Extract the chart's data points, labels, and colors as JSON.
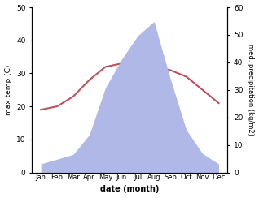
{
  "months": [
    "Jan",
    "Feb",
    "Mar",
    "Apr",
    "May",
    "Jun",
    "Jul",
    "Aug",
    "Sep",
    "Oct",
    "Nov",
    "Dec"
  ],
  "max_temp": [
    19,
    20,
    23,
    28,
    32,
    33,
    32.5,
    32,
    31,
    29,
    25,
    21
  ],
  "precipitation": [
    18,
    28,
    38,
    80,
    180,
    240,
    290,
    320,
    200,
    90,
    40,
    18
  ],
  "temp_ylim": [
    0,
    50
  ],
  "precip_ylim": [
    0,
    350
  ],
  "temp_color": "#c05060",
  "precip_fill_color": "#b0b8e8",
  "xlabel": "date (month)",
  "ylabel_left": "max temp (C)",
  "ylabel_right": "med. precipitation (kg/m2)",
  "temp_yticks": [
    0,
    10,
    20,
    30,
    40,
    50
  ],
  "precip_yticks_vals": [
    0,
    10,
    20,
    30,
    40,
    50,
    60
  ],
  "precip_yticks_pos": [
    0,
    58.3,
    116.7,
    175.0,
    233.3,
    291.7,
    350
  ],
  "background_color": "#ffffff",
  "figsize": [
    3.18,
    2.44
  ],
  "dpi": 100
}
